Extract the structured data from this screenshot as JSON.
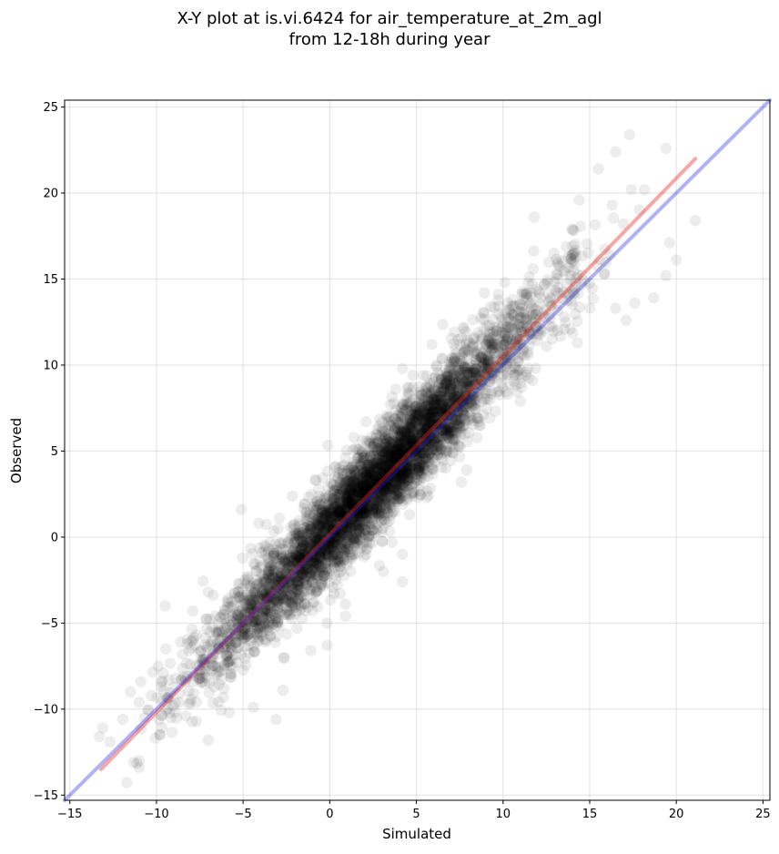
{
  "chart_data": {
    "type": "scatter",
    "title_line1": "X-Y plot at is.vi.6424 for air_temperature_at_2m_agl",
    "title_line2": "from 12-18h during year",
    "xlabel": "Simulated",
    "ylabel": "Observed",
    "xlim": [
      -15.3,
      25.4
    ],
    "ylim": [
      -15.3,
      25.4
    ],
    "xticks": [
      -15,
      -10,
      -5,
      0,
      5,
      10,
      15,
      20,
      25
    ],
    "yticks": [
      -15,
      -10,
      -5,
      0,
      5,
      10,
      15,
      20,
      25
    ],
    "xtick_labels": [
      "−15",
      "−10",
      "−5",
      "0",
      "5",
      "10",
      "15",
      "20",
      "25"
    ],
    "ytick_labels": [
      "−15",
      "−10",
      "−5",
      "0",
      "5",
      "10",
      "15",
      "20",
      "25"
    ],
    "grid": true,
    "points_description_slope": 1.05,
    "point_color": "#000000",
    "point_alpha": 0.07,
    "points": [
      [
        -13.1,
        -11.1
      ],
      [
        -13.3,
        -11.6
      ],
      [
        -11.5,
        -9.0
      ],
      [
        -11.0,
        -9.6
      ],
      [
        -10.7,
        -10.5
      ],
      [
        -11.0,
        -13.4
      ],
      [
        -11.0,
        -13.0
      ],
      [
        -9.6,
        -7.9
      ],
      [
        -9.9,
        -7.5
      ],
      [
        -8.5,
        -6.8
      ],
      [
        -8.6,
        -6.1
      ],
      [
        -7.9,
        -4.3
      ],
      [
        -8.3,
        -10.4
      ],
      [
        -7.7,
        -10.7
      ],
      [
        -7.0,
        -11.8
      ],
      [
        -9.5,
        -4.0
      ],
      [
        -5.1,
        1.6
      ],
      [
        -4.1,
        0.8
      ],
      [
        -2.9,
        1.1
      ],
      [
        -3.3,
        -1.9
      ],
      [
        -5.8,
        -10.2
      ],
      [
        -4.4,
        -9.9
      ],
      [
        -3.1,
        -10.6
      ],
      [
        -2.7,
        -8.9
      ],
      [
        -1.1,
        -6.6
      ],
      [
        0.6,
        -3.3
      ],
      [
        0.9,
        -3.9
      ],
      [
        0.9,
        -4.6
      ],
      [
        3.1,
        -2.0
      ],
      [
        4.2,
        -1.0
      ],
      [
        4.2,
        -2.6
      ],
      [
        3.6,
        -0.3
      ],
      [
        5.1,
        2.3
      ],
      [
        7.6,
        3.2
      ],
      [
        7.9,
        3.9
      ],
      [
        8.7,
        6.5
      ],
      [
        11.0,
        7.9
      ],
      [
        11.7,
        9.1
      ],
      [
        14.3,
        11.3
      ],
      [
        13.6,
        12.5
      ],
      [
        16.5,
        13.3
      ],
      [
        17.1,
        12.6
      ],
      [
        17.6,
        13.6
      ],
      [
        18.7,
        13.9
      ],
      [
        19.4,
        15.2
      ],
      [
        19.6,
        17.1
      ],
      [
        20.0,
        16.1
      ],
      [
        21.1,
        18.4
      ],
      [
        19.4,
        22.6
      ],
      [
        16.5,
        22.4
      ],
      [
        17.3,
        23.4
      ],
      [
        15.5,
        21.4
      ],
      [
        14.4,
        19.6
      ],
      [
        16.3,
        19.3
      ],
      [
        17.4,
        20.2
      ],
      [
        9.3,
        13.4
      ],
      [
        11.8,
        18.6
      ],
      [
        10.1,
        14.8
      ],
      [
        5.9,
        11.2
      ],
      [
        4.2,
        9.8
      ],
      [
        3.8,
        8.6
      ],
      [
        4.8,
        9.4
      ],
      [
        1.4,
        5.8
      ],
      [
        2.1,
        6.7
      ],
      [
        1.1,
        3.9
      ]
    ],
    "reference_line": {
      "x": [
        -15.3,
        25.4
      ],
      "y": [
        -15.3,
        25.4
      ],
      "color": "#2222dd",
      "alpha": 0.35
    },
    "fit_line": {
      "x": [
        -13.2,
        21.1
      ],
      "y": [
        -13.5,
        22.0
      ],
      "color": "#ee2222",
      "alpha": 0.4
    }
  }
}
